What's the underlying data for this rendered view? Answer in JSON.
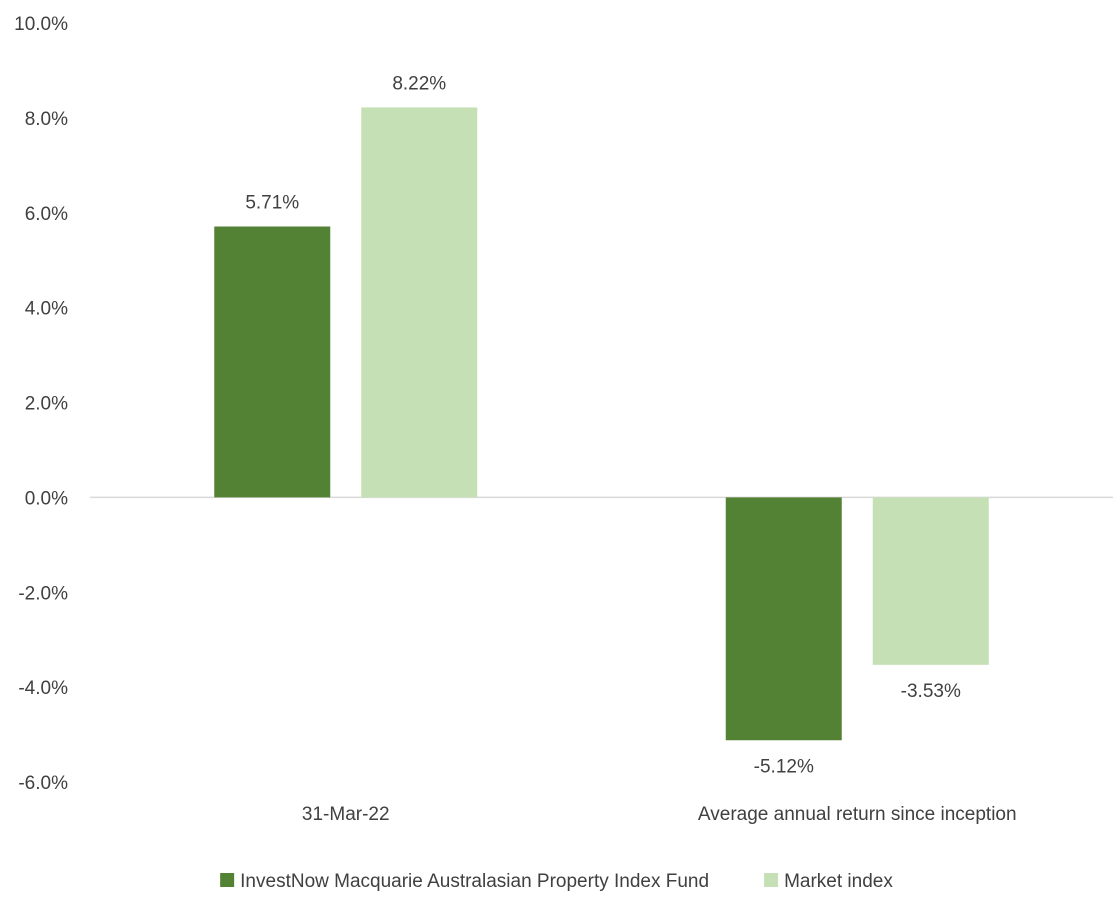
{
  "chart_data": {
    "type": "bar",
    "categories": [
      "31-Mar-22",
      "Average annual return since inception"
    ],
    "series": [
      {
        "name": "InvestNow Macquarie Australasian Property Index Fund",
        "values": [
          5.71,
          -5.12
        ],
        "color": "#548235"
      },
      {
        "name": "Market index",
        "values": [
          8.22,
          -3.53
        ],
        "color": "#c5e0b4"
      }
    ],
    "data_labels": [
      [
        "5.71%",
        "-5.12%"
      ],
      [
        "8.22%",
        "-3.53%"
      ]
    ],
    "ylim": [
      -6.0,
      10.0
    ],
    "yticks": [
      -6.0,
      -4.0,
      -2.0,
      0.0,
      2.0,
      4.0,
      6.0,
      8.0,
      10.0
    ],
    "ytick_labels": [
      "-6.0%",
      "-4.0%",
      "-2.0%",
      "0.0%",
      "2.0%",
      "4.0%",
      "6.0%",
      "8.0%",
      "10.0%"
    ],
    "grid": false,
    "legend_position": "bottom",
    "zero_line_color": "#d9d9d9"
  }
}
